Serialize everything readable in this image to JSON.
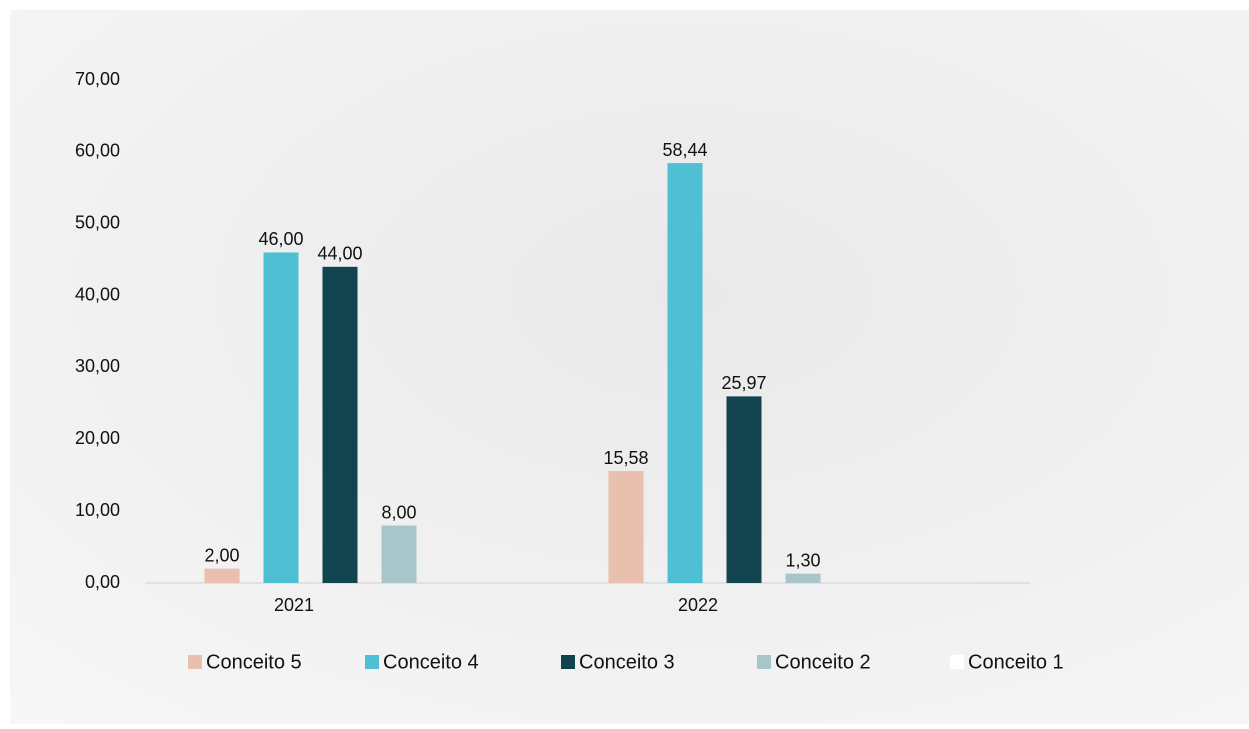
{
  "chart_data": {
    "type": "bar",
    "categories": [
      "2021",
      "2022"
    ],
    "series": [
      {
        "name": "Conceito 5",
        "color": "#e9bfad",
        "values": [
          2,
          15.58
        ],
        "value_labels": [
          "2,00",
          "15,58"
        ]
      },
      {
        "name": "Conceito 4",
        "color": "#4fc0d4",
        "values": [
          46,
          58.44
        ],
        "value_labels": [
          "46,00",
          "58,44"
        ]
      },
      {
        "name": "Conceito 3",
        "color": "#11444f",
        "values": [
          44,
          25.97
        ],
        "value_labels": [
          "44,00",
          "25,97"
        ]
      },
      {
        "name": "Conceito 2",
        "color": "#a8c5ca",
        "values": [
          8,
          1.3
        ],
        "value_labels": [
          "8,00",
          "1,30"
        ]
      },
      {
        "name": "Conceito 1",
        "color": "#ffffff",
        "values": [
          null,
          null
        ]
      }
    ],
    "ylim": [
      0,
      70
    ],
    "yticks": [
      {
        "value": 0,
        "label": "0,00"
      },
      {
        "value": 10,
        "label": "10,00"
      },
      {
        "value": 20,
        "label": "20,00"
      },
      {
        "value": 30,
        "label": "30,00"
      },
      {
        "value": 40,
        "label": "40,00"
      },
      {
        "value": 50,
        "label": "50,00"
      },
      {
        "value": 60,
        "label": "60,00"
      },
      {
        "value": 70,
        "label": "70,00"
      }
    ],
    "grid": false,
    "legend": "bottom"
  }
}
